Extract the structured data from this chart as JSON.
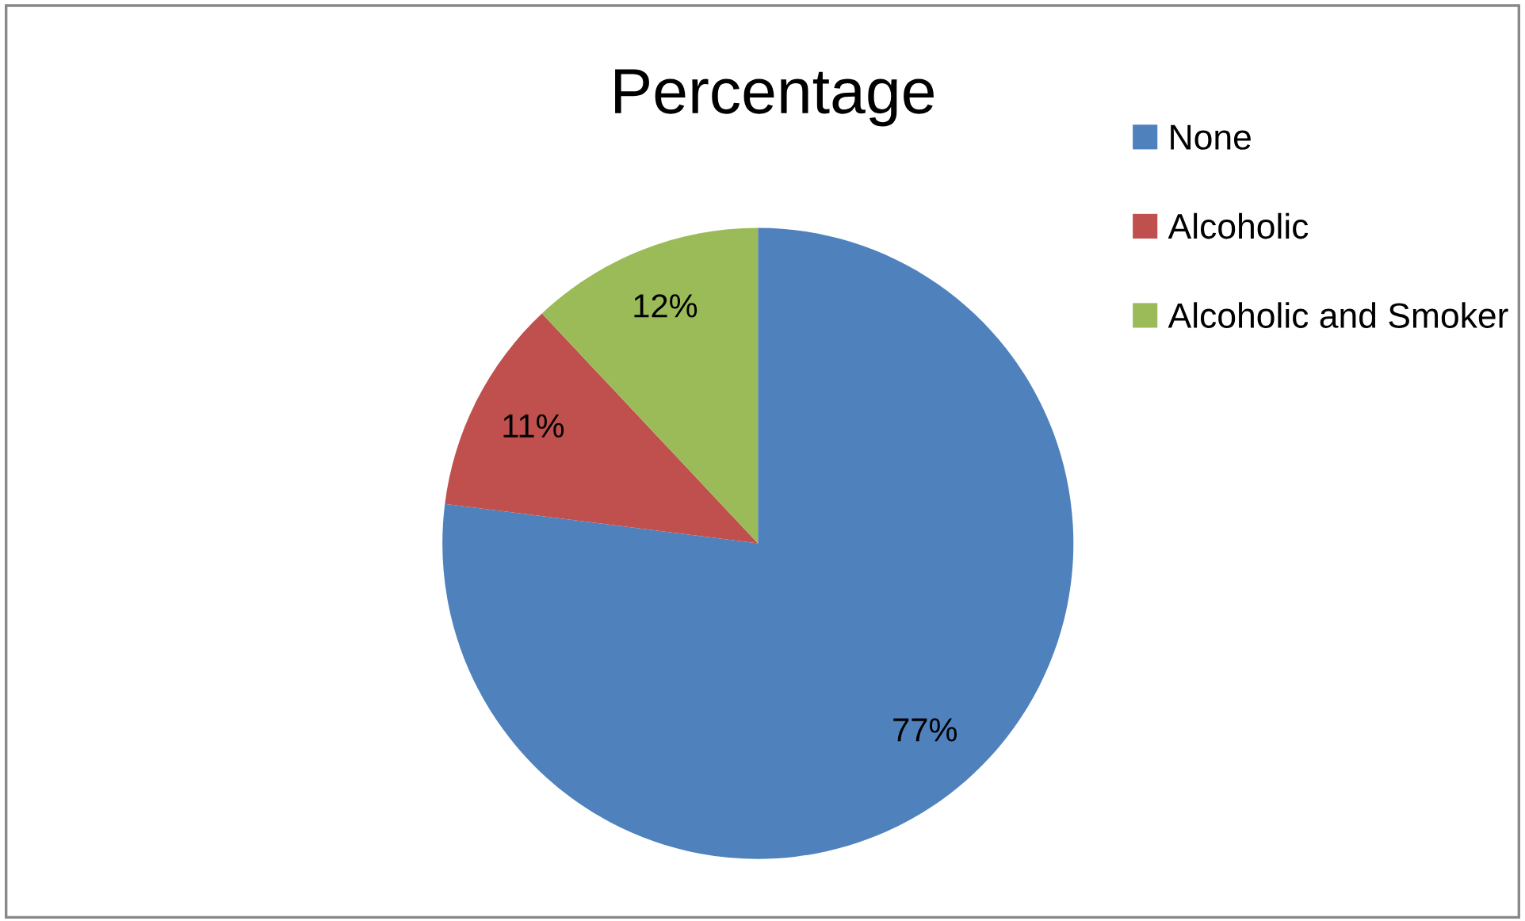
{
  "chart_data": {
    "type": "pie",
    "title": "Percentage",
    "categories": [
      "None",
      "Alcoholic",
      "Alcoholic and Smoker"
    ],
    "values": [
      77,
      11,
      12
    ],
    "colors": [
      "#4f81bd",
      "#c0504d",
      "#9bbb59"
    ],
    "value_labels": [
      "77%",
      "11%",
      "12%"
    ],
    "legend": "top right"
  }
}
